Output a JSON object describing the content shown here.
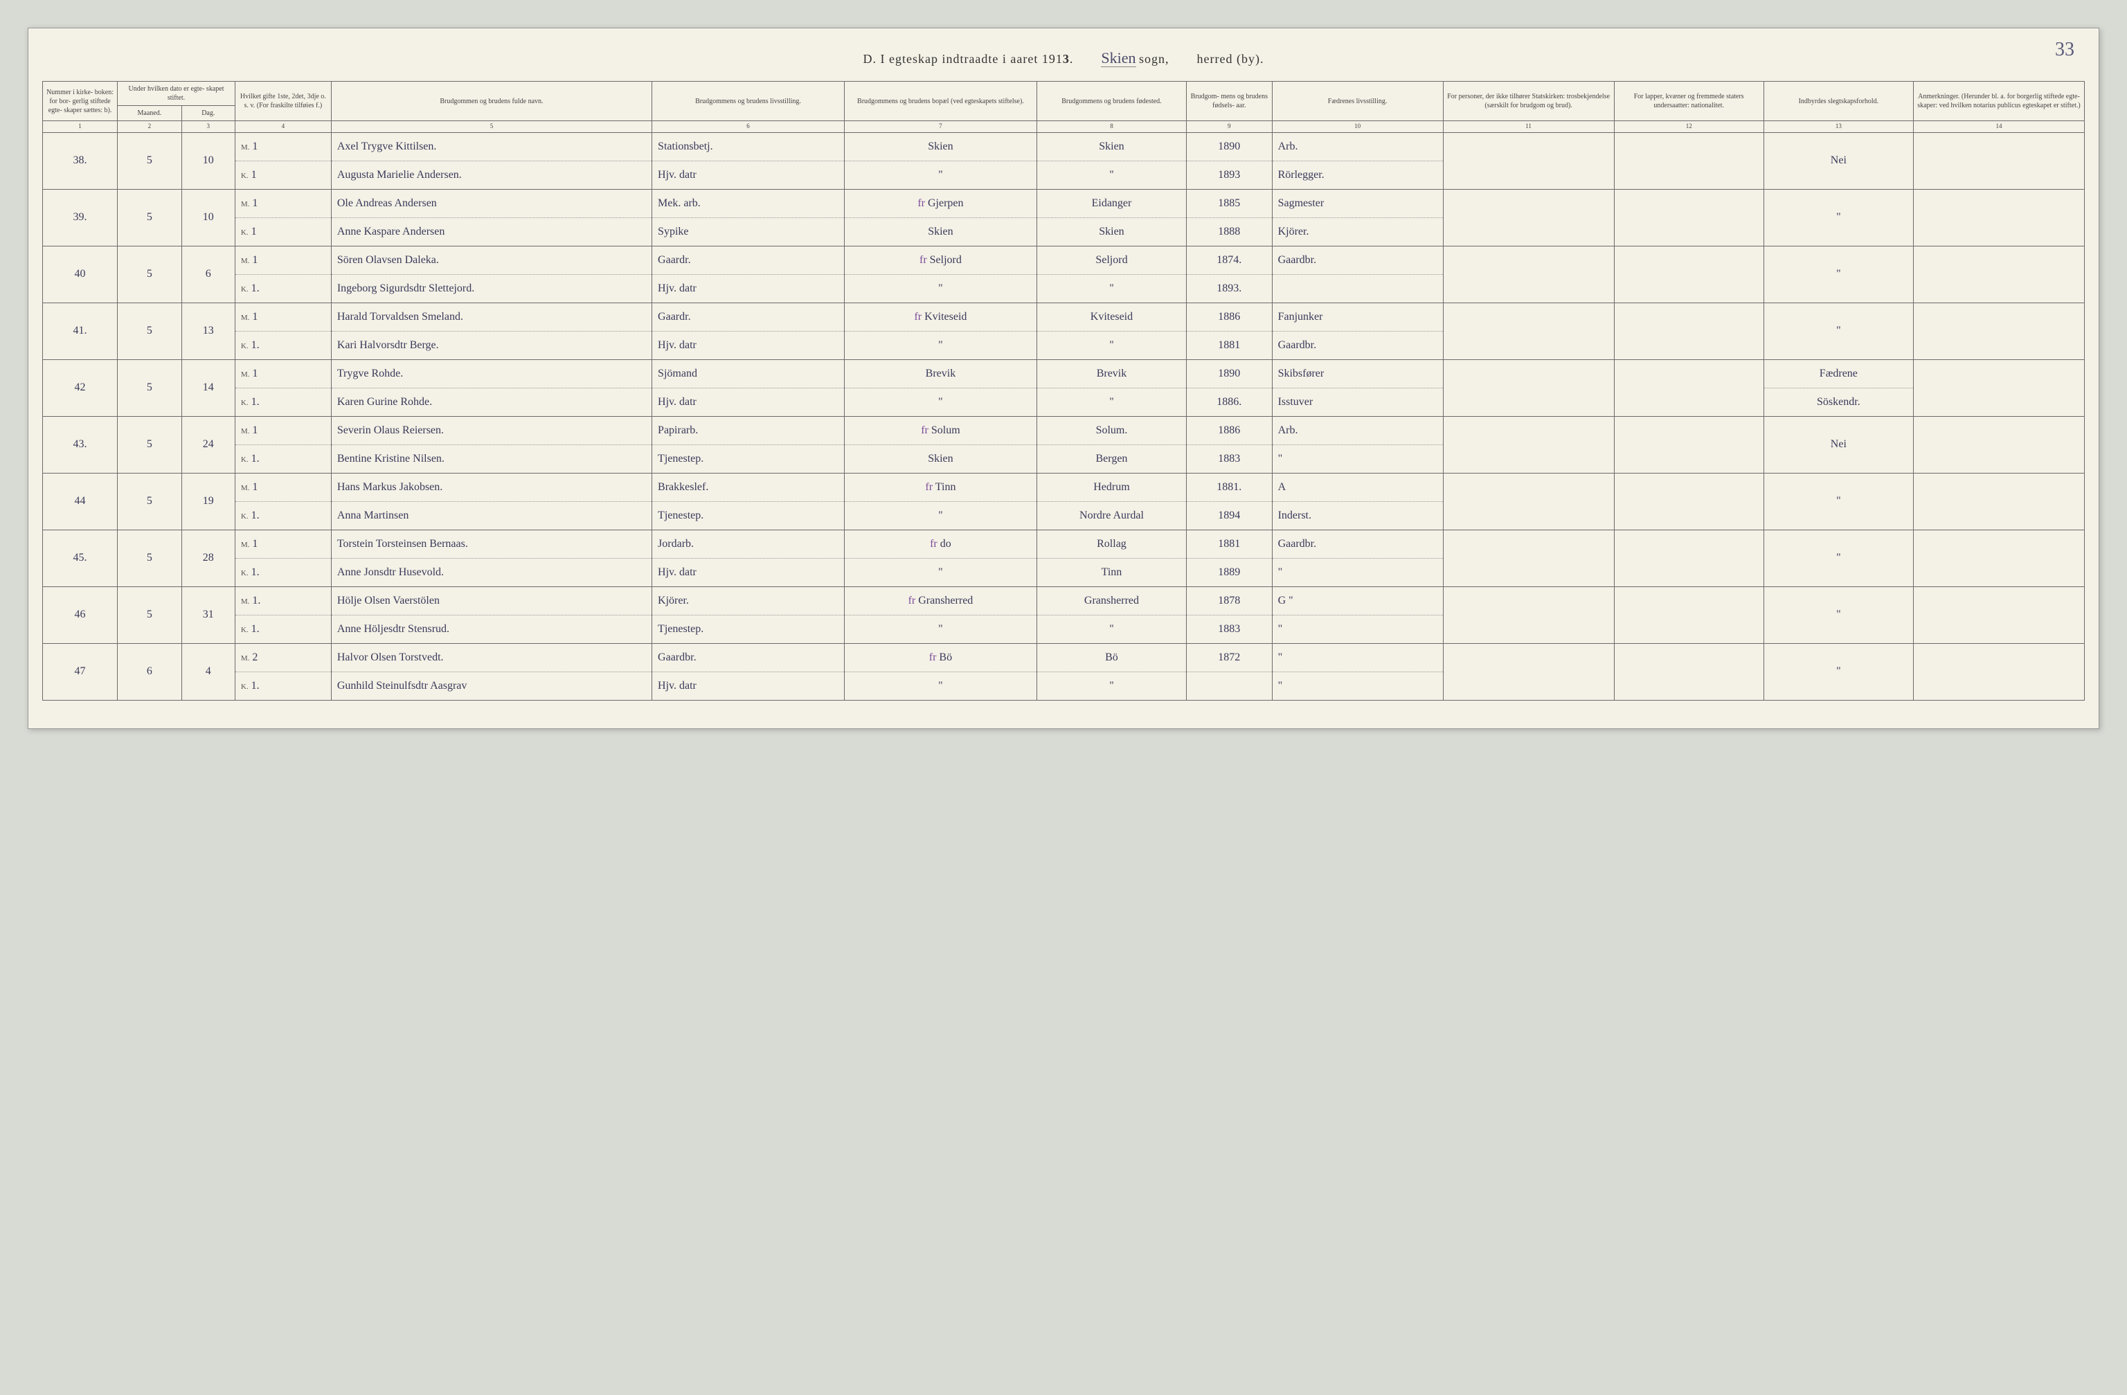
{
  "page_number": "33",
  "title": {
    "prefix": "D.  I egteskap indtraadte i aaret 191",
    "year_suffix": "3",
    "sogn_written": "Skien",
    "sogn_label": "sogn,",
    "herred_label": "herred (by)."
  },
  "headers": {
    "c1": "Nummer i kirke- boken: for bor- gerlig stiftede egte- skaper sættes: b).",
    "c2_top": "Under hvilken dato er egte- skapet stiftet.",
    "c2_m": "Maaned.",
    "c2_d": "Dag.",
    "c4": "Hvilket gifte 1ste, 2det, 3dje o. s. v. (For fraskilte tilføies f.)",
    "c5": "Brudgommen og brudens fulde navn.",
    "c6": "Brudgommens og brudens livsstilling.",
    "c7": "Brudgommens og brudens bopæl (ved egteskapets stiftelse).",
    "c8": "Brudgommens og brudens fødested.",
    "c9": "Brudgom- mens og brudens fødsels- aar.",
    "c10": "Fædrenes livsstilling.",
    "c11": "For personer, der ikke tilhører Statskirken: trosbekjendelse (særskilt for brudgom og brud).",
    "c12": "For lapper, kvæner og fremmede staters undersaatter: nationalitet.",
    "c13": "Indbyrdes slegtskapsforhold.",
    "c14": "Anmerkninger. (Herunder bl. a. for borgerlig stiftede egte- skaper: ved hvilken notarius publicus egteskapet er stiftet.)"
  },
  "rows": [
    {
      "num": "38.",
      "maaned": "5",
      "dag": "10",
      "m": {
        "gifte": "1",
        "navn": "Axel Trygve Kittilsen.",
        "stilling": "Stationsbetj.",
        "bopael": "Skien",
        "fodested": "Skien",
        "aar": "1890",
        "far": "Arb."
      },
      "k": {
        "gifte": "1",
        "navn": "Augusta Marielie Andersen.",
        "stilling": "Hjv. datr",
        "bopael": "\"",
        "fodested": "\"",
        "aar": "1893",
        "far": "Rörlegger."
      },
      "c13": "Nei"
    },
    {
      "num": "39.",
      "maaned": "5",
      "dag": "10",
      "m": {
        "gifte": "1",
        "navn": "Ole Andreas Andersen",
        "stilling": "Mek. arb.",
        "bopael": "Gjerpen",
        "bopael_prefix": "fr ",
        "fodested": "Eidanger",
        "aar": "1885",
        "far": "Sagmester"
      },
      "k": {
        "gifte": "1",
        "navn": "Anne Kaspare Andersen",
        "stilling": "Sypike",
        "bopael": "Skien",
        "fodested": "Skien",
        "aar": "1888",
        "far": "Kjörer."
      },
      "c13": "\""
    },
    {
      "num": "40",
      "maaned": "5",
      "dag": "6",
      "m": {
        "gifte": "1",
        "navn": "Sören Olavsen Daleka.",
        "stilling": "Gaardr.",
        "bopael": "Seljord",
        "bopael_prefix": "fr ",
        "fodested": "Seljord",
        "aar": "1874.",
        "far": "Gaardbr."
      },
      "k": {
        "gifte": "1.",
        "navn": "Ingeborg Sigurdsdtr Slettejord.",
        "stilling": "Hjv. datr",
        "bopael": "\"",
        "fodested": "\"",
        "aar": "1893."
      },
      "c13": "\""
    },
    {
      "num": "41.",
      "maaned": "5",
      "dag": "13",
      "m": {
        "gifte": "1",
        "navn": "Harald Torvaldsen Smeland.",
        "stilling": "Gaardr.",
        "bopael": "Kviteseid",
        "bopael_prefix": "fr ",
        "fodested": "Kviteseid",
        "aar": "1886",
        "far": "Fanjunker"
      },
      "k": {
        "gifte": "1.",
        "navn": "Kari Halvorsdtr Berge.",
        "stilling": "Hjv. datr",
        "bopael": "\"",
        "fodested": "\"",
        "aar": "1881",
        "far": "Gaardbr."
      },
      "c13": "\""
    },
    {
      "num": "42",
      "maaned": "5",
      "dag": "14",
      "m": {
        "gifte": "1",
        "navn": "Trygve Rohde.",
        "stilling": "Sjömand",
        "bopael": "Brevik",
        "fodested": "Brevik",
        "aar": "1890",
        "far": "Skibsfører"
      },
      "k": {
        "gifte": "1.",
        "navn": "Karen Gurine Rohde.",
        "stilling": "Hjv. datr",
        "bopael": "\"",
        "fodested": "\"",
        "aar": "1886.",
        "far": "Isstuver"
      },
      "c13_a": "Fædrene",
      "c13_b": "Söskendr."
    },
    {
      "num": "43.",
      "maaned": "5",
      "dag": "24",
      "m": {
        "gifte": "1",
        "navn": "Severin Olaus Reiersen.",
        "stilling": "Papirarb.",
        "bopael": "Solum",
        "bopael_prefix": "fr ",
        "fodested": "Solum.",
        "aar": "1886",
        "far": "Arb."
      },
      "k": {
        "gifte": "1.",
        "navn": "Bentine Kristine Nilsen.",
        "stilling": "Tjenestep.",
        "bopael": "Skien",
        "fodested": "Bergen",
        "aar": "1883",
        "far": "\""
      },
      "c13": "Nei"
    },
    {
      "num": "44",
      "maaned": "5",
      "dag": "19",
      "m": {
        "gifte": "1",
        "navn": "Hans Markus Jakobsen.",
        "stilling": "Brakkeslef.",
        "bopael": "Tinn",
        "bopael_prefix": "fr ",
        "fodested": "Hedrum",
        "aar": "1881.",
        "far": "A"
      },
      "k": {
        "gifte": "1.",
        "navn": "Anna Martinsen",
        "stilling": "Tjenestep.",
        "bopael": "\"",
        "fodested": "Nordre Aurdal",
        "aar": "1894",
        "far": "Inderst."
      },
      "c13": "\""
    },
    {
      "num": "45.",
      "maaned": "5",
      "dag": "28",
      "m": {
        "gifte": "1",
        "navn": "Torstein Torsteinsen Bernaas.",
        "stilling": "Jordarb.",
        "bopael": "do",
        "bopael_prefix": "fr ",
        "fodested": "Rollag",
        "aar": "1881",
        "far": "Gaardbr."
      },
      "k": {
        "gifte": "1.",
        "navn": "Anne Jonsdtr Husevold.",
        "stilling": "Hjv. datr",
        "bopael": "\"",
        "fodested": "Tinn",
        "aar": "1889",
        "far": "\""
      },
      "c13": "\""
    },
    {
      "num": "46",
      "maaned": "5",
      "dag": "31",
      "m": {
        "gifte": "1.",
        "navn": "Hölje Olsen Vaerstölen",
        "stilling": "Kjörer.",
        "bopael": "Gransherred",
        "bopael_prefix": "fr ",
        "fodested": "Gransherred",
        "aar": "1878",
        "far": "G \""
      },
      "k": {
        "gifte": "1.",
        "navn": "Anne Höljesdtr Stensrud.",
        "stilling": "Tjenestep.",
        "bopael": "\"",
        "fodested": "\"",
        "aar": "1883",
        "far": "\""
      },
      "c13": "\""
    },
    {
      "num": "47",
      "maaned": "6",
      "dag": "4",
      "m": {
        "gifte": "2",
        "navn": "Halvor Olsen Torstvedt.",
        "stilling": "Gaardbr.",
        "bopael": "Bö",
        "bopael_prefix": "fr ",
        "fodested": "Bö",
        "aar": "1872",
        "far": "\""
      },
      "k": {
        "gifte": "1.",
        "navn": "Gunhild Steinulfsdtr Aasgrav",
        "stilling": "Hjv. datr",
        "bopael": "\"",
        "fodested": "\"",
        "far": "\""
      },
      "c13": "\""
    }
  ],
  "styling": {
    "page_bg": "#f4f1e6",
    "outer_bg": "#d8dad4",
    "border_color": "#6a6a6a",
    "header_text": "#444",
    "cell_text": "#3a3a5a",
    "purple": "#7a4a9a",
    "header_fontsize": 10,
    "cell_fontsize": 16
  }
}
